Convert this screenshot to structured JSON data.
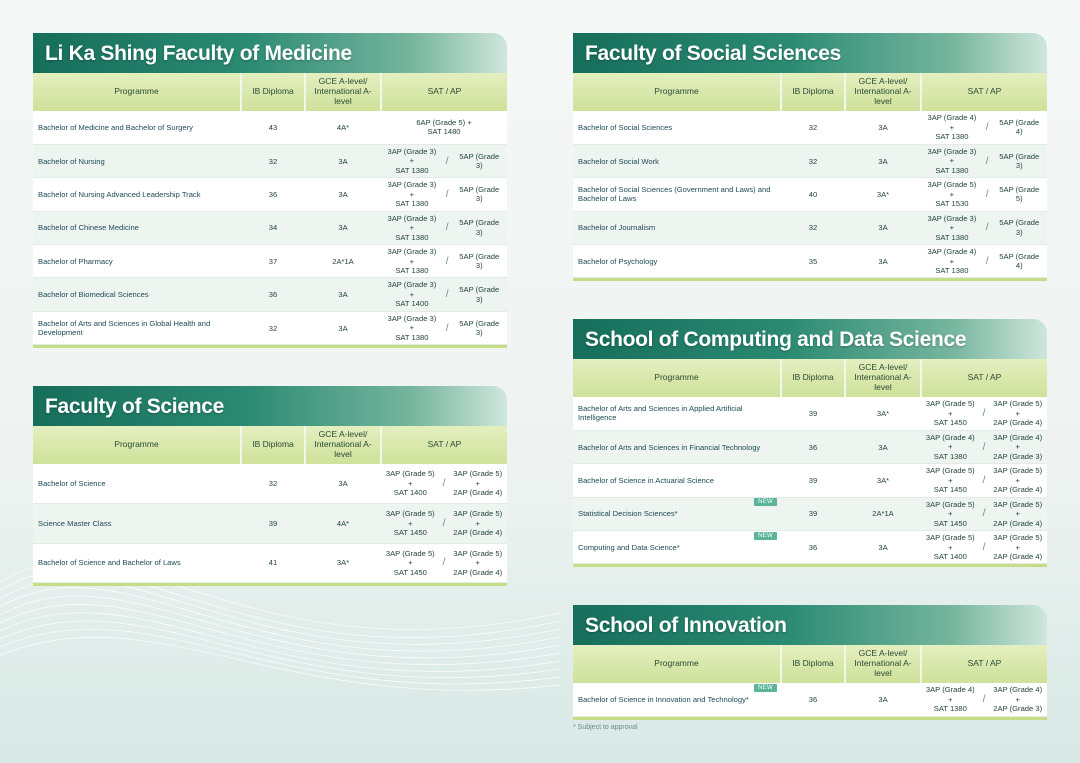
{
  "headers": {
    "programme": "Programme",
    "ib": "IB Diploma",
    "gce": "GCE A-level/ International A-level",
    "sat": "SAT / AP"
  },
  "medicine": {
    "title": "Li Ka Shing Faculty of Medicine",
    "rows": [
      {
        "programme": "Bachelor of Medicine and Bachelor of Surgery",
        "ib": "43",
        "gce": "4A*",
        "sat1": [
          "6AP (Grade 5) +",
          "SAT 1480"
        ],
        "sat2": []
      },
      {
        "programme": "Bachelor of Nursing",
        "ib": "32",
        "gce": "3A",
        "sat1": [
          "3AP (Grade 3) +",
          "SAT 1380"
        ],
        "sat2": [
          "5AP (Grade 3)"
        ]
      },
      {
        "programme": "Bachelor of Nursing Advanced Leadership Track",
        "ib": "36",
        "gce": "3A",
        "sat1": [
          "3AP (Grade 3) +",
          "SAT 1380"
        ],
        "sat2": [
          "5AP (Grade 3)"
        ]
      },
      {
        "programme": "Bachelor of Chinese Medicine",
        "ib": "34",
        "gce": "3A",
        "sat1": [
          "3AP (Grade 3) +",
          "SAT 1380"
        ],
        "sat2": [
          "5AP (Grade 3)"
        ]
      },
      {
        "programme": "Bachelor of Pharmacy",
        "ib": "37",
        "gce": "2A*1A",
        "sat1": [
          "3AP (Grade 3) +",
          "SAT 1380"
        ],
        "sat2": [
          "5AP (Grade 3)"
        ]
      },
      {
        "programme": "Bachelor of Biomedical Sciences",
        "ib": "36",
        "gce": "3A",
        "sat1": [
          "3AP (Grade 3) +",
          "SAT 1400"
        ],
        "sat2": [
          "5AP (Grade 3)"
        ]
      },
      {
        "programme": "Bachelor of Arts and Sciences in Global Health and Development",
        "ib": "32",
        "gce": "3A",
        "sat1": [
          "3AP (Grade 3) +",
          "SAT 1380"
        ],
        "sat2": [
          "5AP (Grade 3)"
        ]
      }
    ]
  },
  "science": {
    "title": "Faculty of Science",
    "rows": [
      {
        "programme": "Bachelor of Science",
        "ib": "32",
        "gce": "3A",
        "sat1": [
          "3AP (Grade 5) +",
          "SAT 1400"
        ],
        "sat2": [
          "3AP (Grade 5) +",
          "2AP (Grade 4)"
        ]
      },
      {
        "programme": "Science Master Class",
        "ib": "39",
        "gce": "4A*",
        "sat1": [
          "3AP (Grade 5) +",
          "SAT 1450"
        ],
        "sat2": [
          "3AP (Grade 5) +",
          "2AP (Grade 4)"
        ]
      },
      {
        "programme": "Bachelor of Science and Bachelor of Laws",
        "ib": "41",
        "gce": "3A*",
        "sat1": [
          "3AP (Grade 5) +",
          "SAT 1450"
        ],
        "sat2": [
          "3AP (Grade 5) +",
          "2AP (Grade 4)"
        ]
      }
    ]
  },
  "social": {
    "title": "Faculty of Social Sciences",
    "rows": [
      {
        "programme": "Bachelor of Social Sciences",
        "ib": "32",
        "gce": "3A",
        "sat1": [
          "3AP (Grade 4) +",
          "SAT 1380"
        ],
        "sat2": [
          "5AP (Grade 4)"
        ]
      },
      {
        "programme": "Bachelor of Social Work",
        "ib": "32",
        "gce": "3A",
        "sat1": [
          "3AP (Grade 3) +",
          "SAT 1380"
        ],
        "sat2": [
          "5AP (Grade 3)"
        ]
      },
      {
        "programme": "Bachelor of Social Sciences (Government and Laws) and Bachelor of Laws",
        "ib": "40",
        "gce": "3A*",
        "sat1": [
          "3AP (Grade 5) +",
          "SAT 1530"
        ],
        "sat2": [
          "5AP (Grade 5)"
        ]
      },
      {
        "programme": "Bachelor of Journalism",
        "ib": "32",
        "gce": "3A",
        "sat1": [
          "3AP (Grade 3) +",
          "SAT 1380"
        ],
        "sat2": [
          "5AP (Grade 3)"
        ]
      },
      {
        "programme": "Bachelor of Psychology",
        "ib": "35",
        "gce": "3A",
        "sat1": [
          "3AP (Grade 4) +",
          "SAT 1380"
        ],
        "sat2": [
          "5AP (Grade 4)"
        ]
      }
    ]
  },
  "computing": {
    "title": "School of Computing and Data Science",
    "rows": [
      {
        "programme": "Bachelor of Arts and Sciences in Applied Artificial Intelligence",
        "ib": "39",
        "gce": "3A*",
        "sat1": [
          "3AP (Grade 5) +",
          "SAT 1450"
        ],
        "sat2": [
          "3AP (Grade 5) +",
          "2AP (Grade 4)"
        ],
        "isNew": false
      },
      {
        "programme": "Bachelor of Arts and Sciences in Financial Technology",
        "ib": "36",
        "gce": "3A",
        "sat1": [
          "3AP (Grade 4) +",
          "SAT 1380"
        ],
        "sat2": [
          "3AP (Grade 4) +",
          "2AP (Grade 3)"
        ],
        "isNew": false
      },
      {
        "programme": "Bachelor of Science in Actuarial Science",
        "ib": "39",
        "gce": "3A*",
        "sat1": [
          "3AP (Grade 5) +",
          "SAT 1450"
        ],
        "sat2": [
          "3AP (Grade 5) +",
          "2AP (Grade 4)"
        ],
        "isNew": false
      },
      {
        "programme": "Statistical Decision Sciences*",
        "ib": "39",
        "gce": "2A*1A",
        "sat1": [
          "3AP (Grade 5) +",
          "SAT 1450"
        ],
        "sat2": [
          "3AP (Grade 5) +",
          "2AP (Grade 4)"
        ],
        "isNew": true
      },
      {
        "programme": "Computing and Data Science*",
        "ib": "36",
        "gce": "3A",
        "sat1": [
          "3AP (Grade 5) +",
          "SAT 1400"
        ],
        "sat2": [
          "3AP (Grade 5) +",
          "2AP (Grade 4)"
        ],
        "isNew": true
      }
    ]
  },
  "innovation": {
    "title": "School of Innovation",
    "rows": [
      {
        "programme": "Bachelor of Science in Innovation and Technology*",
        "ib": "36",
        "gce": "3A",
        "sat1": [
          "3AP (Grade 4) +",
          "SAT 1380"
        ],
        "sat2": [
          "3AP (Grade 4) +",
          "2AP (Grade 3)"
        ],
        "isNew": true
      }
    ]
  },
  "newLabel": "NEW",
  "footnote": "* Subject to approval"
}
